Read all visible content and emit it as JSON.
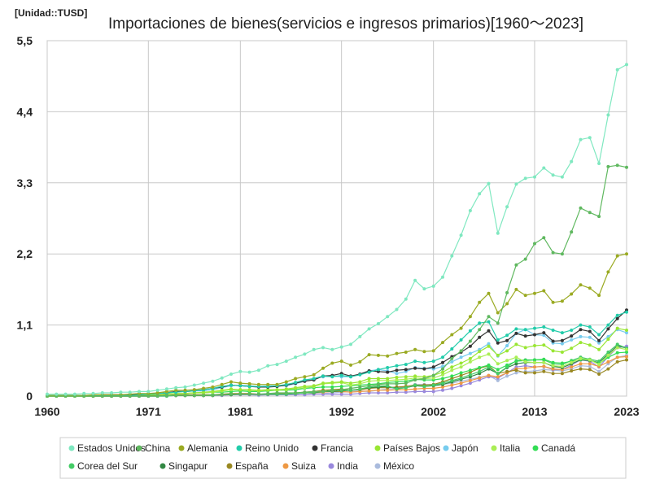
{
  "unit_label": "[Unidad::TUSD]",
  "chart_data": {
    "type": "line",
    "title": "Importaciones de bienes(servicios e ingresos primarios)[1960～2023]",
    "xlabel": "",
    "ylabel": "",
    "x_range": [
      1960,
      2023
    ],
    "ylim": [
      0,
      5.5
    ],
    "x_ticks": [
      "1960",
      "1971",
      "1981",
      "1992",
      "2002",
      "2013",
      "2023"
    ],
    "y_ticks": [
      "0",
      "1,1",
      "2,2",
      "3,3",
      "4,4",
      "5,5"
    ],
    "grid": true,
    "legend_position": "bottom",
    "series": [
      {
        "name": "Estados Unidos",
        "color": "#7fe8c0",
        "start": 1960,
        "values": [
          0.03,
          0.03,
          0.03,
          0.03,
          0.04,
          0.04,
          0.05,
          0.05,
          0.06,
          0.06,
          0.07,
          0.07,
          0.09,
          0.11,
          0.13,
          0.14,
          0.17,
          0.2,
          0.23,
          0.28,
          0.34,
          0.38,
          0.37,
          0.4,
          0.47,
          0.49,
          0.54,
          0.6,
          0.65,
          0.72,
          0.75,
          0.72,
          0.76,
          0.8,
          0.92,
          1.04,
          1.12,
          1.23,
          1.34,
          1.5,
          1.79,
          1.66,
          1.7,
          1.84,
          2.17,
          2.49,
          2.87,
          3.13,
          3.29,
          2.52,
          2.93,
          3.28,
          3.37,
          3.39,
          3.53,
          3.42,
          3.39,
          3.63,
          3.97,
          4.0,
          3.6,
          4.35,
          5.05,
          5.13
        ]
      },
      {
        "name": "China",
        "color": "#5fb85f",
        "start": 1960,
        "values": [
          0.0,
          0.0,
          0.0,
          0.0,
          0.0,
          0.0,
          0.0,
          0.0,
          0.0,
          0.0,
          0.0,
          0.0,
          0.0,
          0.01,
          0.01,
          0.01,
          0.01,
          0.01,
          0.01,
          0.02,
          0.03,
          0.03,
          0.03,
          0.03,
          0.04,
          0.05,
          0.05,
          0.05,
          0.06,
          0.07,
          0.07,
          0.08,
          0.1,
          0.12,
          0.14,
          0.16,
          0.18,
          0.19,
          0.19,
          0.2,
          0.25,
          0.27,
          0.32,
          0.42,
          0.58,
          0.7,
          0.85,
          1.03,
          1.23,
          1.13,
          1.6,
          2.03,
          2.12,
          2.36,
          2.45,
          2.22,
          2.2,
          2.54,
          2.91,
          2.84,
          2.78,
          3.55,
          3.57,
          3.54
        ]
      },
      {
        "name": "Alemania",
        "color": "#9aaa22",
        "start": 1960,
        "values": [
          0.01,
          0.01,
          0.01,
          0.01,
          0.01,
          0.02,
          0.02,
          0.02,
          0.02,
          0.03,
          0.04,
          0.04,
          0.05,
          0.07,
          0.09,
          0.09,
          0.1,
          0.12,
          0.14,
          0.18,
          0.22,
          0.2,
          0.19,
          0.18,
          0.18,
          0.18,
          0.22,
          0.27,
          0.3,
          0.33,
          0.43,
          0.51,
          0.54,
          0.48,
          0.53,
          0.64,
          0.63,
          0.62,
          0.66,
          0.68,
          0.72,
          0.69,
          0.7,
          0.83,
          0.95,
          1.05,
          1.23,
          1.45,
          1.59,
          1.29,
          1.43,
          1.65,
          1.56,
          1.59,
          1.63,
          1.45,
          1.47,
          1.58,
          1.72,
          1.67,
          1.56,
          1.92,
          2.17,
          2.2
        ]
      },
      {
        "name": "Reino Unido",
        "color": "#22ccaa",
        "start": 1960,
        "values": [
          0.01,
          0.01,
          0.01,
          0.01,
          0.01,
          0.01,
          0.01,
          0.01,
          0.01,
          0.01,
          0.02,
          0.03,
          0.04,
          0.05,
          0.06,
          0.07,
          0.08,
          0.1,
          0.12,
          0.15,
          0.17,
          0.16,
          0.15,
          0.15,
          0.15,
          0.16,
          0.18,
          0.21,
          0.25,
          0.27,
          0.31,
          0.3,
          0.32,
          0.3,
          0.33,
          0.37,
          0.41,
          0.44,
          0.47,
          0.49,
          0.54,
          0.52,
          0.54,
          0.6,
          0.73,
          0.87,
          1.01,
          1.13,
          1.15,
          0.87,
          0.94,
          1.04,
          1.03,
          1.05,
          1.07,
          1.02,
          0.98,
          1.02,
          1.1,
          1.07,
          0.95,
          1.1,
          1.25,
          1.3
        ]
      },
      {
        "name": "Francia",
        "color": "#333333",
        "start": 1960,
        "values": [
          0.01,
          0.01,
          0.01,
          0.01,
          0.01,
          0.01,
          0.02,
          0.02,
          0.02,
          0.02,
          0.03,
          0.03,
          0.04,
          0.05,
          0.07,
          0.07,
          0.08,
          0.1,
          0.12,
          0.14,
          0.17,
          0.16,
          0.15,
          0.14,
          0.14,
          0.15,
          0.17,
          0.2,
          0.23,
          0.25,
          0.31,
          0.32,
          0.35,
          0.31,
          0.34,
          0.39,
          0.38,
          0.37,
          0.4,
          0.41,
          0.43,
          0.42,
          0.45,
          0.52,
          0.61,
          0.68,
          0.77,
          0.91,
          1.01,
          0.82,
          0.86,
          0.97,
          0.93,
          0.95,
          0.98,
          0.85,
          0.86,
          0.93,
          1.03,
          1.0,
          0.86,
          1.04,
          1.2,
          1.33
        ]
      },
      {
        "name": "Países Bajos",
        "color": "#99e633",
        "start": 1960,
        "values": [
          0.0,
          0.0,
          0.0,
          0.0,
          0.0,
          0.0,
          0.01,
          0.01,
          0.01,
          0.01,
          0.02,
          0.02,
          0.02,
          0.03,
          0.04,
          0.04,
          0.05,
          0.06,
          0.07,
          0.09,
          0.11,
          0.1,
          0.1,
          0.09,
          0.1,
          0.1,
          0.11,
          0.13,
          0.15,
          0.16,
          0.2,
          0.21,
          0.22,
          0.2,
          0.22,
          0.27,
          0.27,
          0.27,
          0.29,
          0.3,
          0.31,
          0.3,
          0.32,
          0.37,
          0.45,
          0.51,
          0.58,
          0.69,
          0.77,
          0.63,
          0.7,
          0.8,
          0.75,
          0.78,
          0.79,
          0.7,
          0.68,
          0.74,
          0.83,
          0.79,
          0.72,
          0.88,
          1.05,
          1.02
        ]
      },
      {
        "name": "Japón",
        "color": "#77ccee",
        "start": 1960,
        "values": [
          0.01,
          0.01,
          0.01,
          0.01,
          0.01,
          0.01,
          0.01,
          0.02,
          0.02,
          0.02,
          0.03,
          0.03,
          0.03,
          0.05,
          0.07,
          0.07,
          0.08,
          0.08,
          0.1,
          0.13,
          0.16,
          0.17,
          0.16,
          0.15,
          0.16,
          0.16,
          0.16,
          0.19,
          0.23,
          0.27,
          0.3,
          0.31,
          0.3,
          0.3,
          0.34,
          0.39,
          0.41,
          0.39,
          0.35,
          0.38,
          0.44,
          0.43,
          0.42,
          0.46,
          0.53,
          0.6,
          0.66,
          0.72,
          0.81,
          0.62,
          0.78,
          0.97,
          1.03,
          0.95,
          0.94,
          0.82,
          0.81,
          0.87,
          0.92,
          0.91,
          0.82,
          0.92,
          1.03,
          0.98
        ]
      },
      {
        "name": "Italia",
        "color": "#aaee55",
        "start": 1960,
        "values": [
          0.0,
          0.0,
          0.0,
          0.0,
          0.0,
          0.01,
          0.01,
          0.01,
          0.01,
          0.01,
          0.02,
          0.02,
          0.02,
          0.03,
          0.04,
          0.04,
          0.05,
          0.05,
          0.06,
          0.08,
          0.1,
          0.1,
          0.09,
          0.08,
          0.09,
          0.09,
          0.1,
          0.12,
          0.13,
          0.15,
          0.19,
          0.2,
          0.21,
          0.17,
          0.19,
          0.23,
          0.24,
          0.24,
          0.25,
          0.26,
          0.28,
          0.27,
          0.28,
          0.33,
          0.4,
          0.45,
          0.53,
          0.6,
          0.65,
          0.5,
          0.55,
          0.6,
          0.53,
          0.52,
          0.52,
          0.47,
          0.46,
          0.52,
          0.58,
          0.56,
          0.49,
          0.63,
          0.75,
          0.72
        ]
      },
      {
        "name": "Canadá",
        "color": "#33dd55",
        "start": 1960,
        "values": [
          0.01,
          0.01,
          0.01,
          0.01,
          0.01,
          0.01,
          0.01,
          0.01,
          0.02,
          0.02,
          0.02,
          0.02,
          0.03,
          0.03,
          0.04,
          0.04,
          0.05,
          0.05,
          0.06,
          0.06,
          0.07,
          0.08,
          0.07,
          0.07,
          0.08,
          0.09,
          0.09,
          0.1,
          0.12,
          0.13,
          0.14,
          0.14,
          0.15,
          0.16,
          0.17,
          0.18,
          0.19,
          0.21,
          0.22,
          0.23,
          0.26,
          0.25,
          0.25,
          0.27,
          0.31,
          0.36,
          0.4,
          0.44,
          0.48,
          0.41,
          0.48,
          0.54,
          0.55,
          0.56,
          0.57,
          0.52,
          0.51,
          0.54,
          0.57,
          0.56,
          0.5,
          0.6,
          0.67,
          0.68
        ]
      },
      {
        "name": "Corea del Sur",
        "color": "#44cc66",
        "start": 1960,
        "values": [
          0.0,
          0.0,
          0.0,
          0.0,
          0.0,
          0.0,
          0.0,
          0.0,
          0.0,
          0.0,
          0.0,
          0.0,
          0.0,
          0.0,
          0.01,
          0.01,
          0.01,
          0.01,
          0.02,
          0.02,
          0.03,
          0.03,
          0.03,
          0.03,
          0.03,
          0.03,
          0.03,
          0.04,
          0.05,
          0.06,
          0.07,
          0.09,
          0.09,
          0.09,
          0.11,
          0.14,
          0.16,
          0.16,
          0.11,
          0.13,
          0.17,
          0.15,
          0.17,
          0.2,
          0.24,
          0.28,
          0.33,
          0.38,
          0.45,
          0.35,
          0.45,
          0.55,
          0.56,
          0.56,
          0.56,
          0.5,
          0.49,
          0.55,
          0.6,
          0.57,
          0.54,
          0.68,
          0.8,
          0.74
        ]
      },
      {
        "name": "Singapur",
        "color": "#338844",
        "start": 1960,
        "values": [
          0.0,
          0.0,
          0.0,
          0.0,
          0.0,
          0.0,
          0.0,
          0.0,
          0.0,
          0.0,
          0.0,
          0.0,
          0.0,
          0.01,
          0.01,
          0.01,
          0.01,
          0.01,
          0.01,
          0.02,
          0.02,
          0.03,
          0.03,
          0.03,
          0.03,
          0.03,
          0.03,
          0.04,
          0.05,
          0.05,
          0.07,
          0.07,
          0.08,
          0.09,
          0.11,
          0.13,
          0.14,
          0.15,
          0.12,
          0.13,
          0.16,
          0.15,
          0.16,
          0.18,
          0.22,
          0.26,
          0.3,
          0.35,
          0.42,
          0.35,
          0.44,
          0.5,
          0.52,
          0.52,
          0.52,
          0.46,
          0.44,
          0.5,
          0.56,
          0.55,
          0.52,
          0.65,
          0.78,
          0.74
        ]
      },
      {
        "name": "España",
        "color": "#998822",
        "start": 1960,
        "values": [
          0.0,
          0.0,
          0.0,
          0.0,
          0.0,
          0.0,
          0.0,
          0.0,
          0.0,
          0.0,
          0.01,
          0.01,
          0.01,
          0.01,
          0.02,
          0.02,
          0.02,
          0.02,
          0.02,
          0.03,
          0.04,
          0.04,
          0.04,
          0.03,
          0.03,
          0.04,
          0.04,
          0.05,
          0.06,
          0.07,
          0.09,
          0.1,
          0.11,
          0.09,
          0.1,
          0.12,
          0.13,
          0.13,
          0.14,
          0.15,
          0.17,
          0.17,
          0.18,
          0.22,
          0.27,
          0.32,
          0.37,
          0.43,
          0.47,
          0.35,
          0.38,
          0.4,
          0.36,
          0.36,
          0.38,
          0.35,
          0.35,
          0.39,
          0.42,
          0.41,
          0.34,
          0.42,
          0.53,
          0.56
        ]
      },
      {
        "name": "Suiza",
        "color": "#ee9944",
        "start": 1960,
        "values": [
          0.0,
          0.0,
          0.0,
          0.0,
          0.0,
          0.0,
          0.0,
          0.0,
          0.0,
          0.0,
          0.01,
          0.01,
          0.01,
          0.01,
          0.01,
          0.01,
          0.01,
          0.01,
          0.02,
          0.02,
          0.03,
          0.03,
          0.03,
          0.03,
          0.03,
          0.03,
          0.04,
          0.04,
          0.05,
          0.05,
          0.06,
          0.07,
          0.07,
          0.06,
          0.07,
          0.08,
          0.09,
          0.09,
          0.1,
          0.1,
          0.11,
          0.12,
          0.12,
          0.14,
          0.17,
          0.2,
          0.24,
          0.28,
          0.32,
          0.3,
          0.36,
          0.42,
          0.43,
          0.45,
          0.46,
          0.42,
          0.41,
          0.45,
          0.5,
          0.5,
          0.46,
          0.53,
          0.6,
          0.61
        ]
      },
      {
        "name": "India",
        "color": "#9988dd",
        "start": 1960,
        "values": [
          0.0,
          0.0,
          0.0,
          0.0,
          0.0,
          0.0,
          0.0,
          0.0,
          0.0,
          0.0,
          0.0,
          0.0,
          0.0,
          0.0,
          0.01,
          0.01,
          0.01,
          0.01,
          0.01,
          0.01,
          0.02,
          0.02,
          0.02,
          0.02,
          0.02,
          0.02,
          0.02,
          0.02,
          0.02,
          0.03,
          0.03,
          0.03,
          0.03,
          0.03,
          0.04,
          0.05,
          0.05,
          0.05,
          0.06,
          0.06,
          0.07,
          0.07,
          0.07,
          0.09,
          0.12,
          0.16,
          0.2,
          0.25,
          0.3,
          0.28,
          0.36,
          0.45,
          0.47,
          0.45,
          0.46,
          0.41,
          0.41,
          0.48,
          0.56,
          0.54,
          0.45,
          0.61,
          0.75,
          0.77
        ]
      },
      {
        "name": "México",
        "color": "#aabbdd",
        "start": 1960,
        "values": [
          0.0,
          0.0,
          0.0,
          0.0,
          0.0,
          0.0,
          0.0,
          0.0,
          0.0,
          0.0,
          0.0,
          0.0,
          0.0,
          0.0,
          0.01,
          0.01,
          0.01,
          0.01,
          0.01,
          0.02,
          0.02,
          0.03,
          0.02,
          0.01,
          0.02,
          0.02,
          0.02,
          0.02,
          0.02,
          0.03,
          0.04,
          0.05,
          0.06,
          0.07,
          0.08,
          0.07,
          0.09,
          0.11,
          0.12,
          0.14,
          0.18,
          0.18,
          0.18,
          0.18,
          0.2,
          0.23,
          0.26,
          0.29,
          0.32,
          0.24,
          0.31,
          0.36,
          0.38,
          0.39,
          0.41,
          0.4,
          0.39,
          0.42,
          0.47,
          0.46,
          0.38,
          0.5,
          0.6,
          0.63
        ]
      }
    ]
  }
}
